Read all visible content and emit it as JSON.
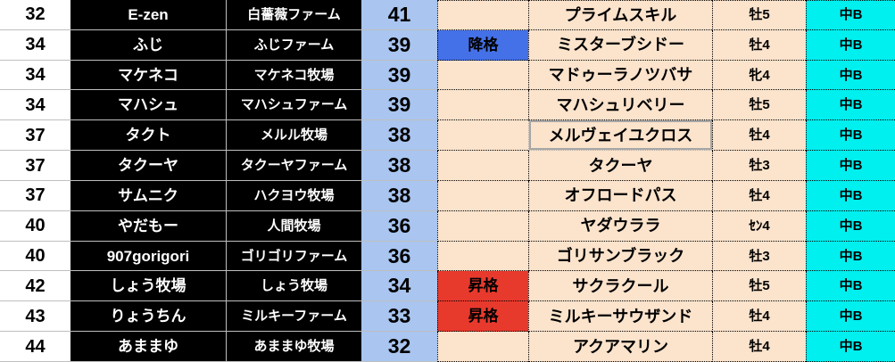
{
  "colors": {
    "c_grid": "#bfbfbf",
    "c_lightblue": "#a9c5f0",
    "c_beige": "#fbe3cc",
    "c_cyan": "#00efef",
    "c_demote": "#4470e8",
    "c_promote": "#e8392d"
  },
  "table": {
    "status_labels": {
      "demote": "降格",
      "promote": "昇格"
    },
    "selected_cell": {
      "row_index": 4,
      "column": "horse_name"
    },
    "rows": [
      {
        "owner_rank": "32",
        "owner_name": "E-zen",
        "farm_name": "白薔薇ファーム",
        "horse_rank": "41",
        "status": "",
        "horse_name": "プライムスキル",
        "sex_age": "牡5",
        "grade": "中B"
      },
      {
        "owner_rank": "34",
        "owner_name": "ふじ",
        "farm_name": "ふじファーム",
        "horse_rank": "39",
        "status": "降格",
        "horse_name": "ミスターブシドー",
        "sex_age": "牡4",
        "grade": "中B"
      },
      {
        "owner_rank": "34",
        "owner_name": "マケネコ",
        "farm_name": "マケネコ牧場",
        "horse_rank": "39",
        "status": "",
        "horse_name": "マドゥーラノツバサ",
        "sex_age": "牝4",
        "grade": "中B"
      },
      {
        "owner_rank": "34",
        "owner_name": "マハシュ",
        "farm_name": "マハシュファーム",
        "horse_rank": "39",
        "status": "",
        "horse_name": "マハシュリベリー",
        "sex_age": "牡5",
        "grade": "中B"
      },
      {
        "owner_rank": "37",
        "owner_name": "タクト",
        "farm_name": "メルル牧場",
        "horse_rank": "38",
        "status": "",
        "horse_name": "メルヴェイユクロス",
        "sex_age": "牡4",
        "grade": "中B"
      },
      {
        "owner_rank": "37",
        "owner_name": "タクーヤ",
        "farm_name": "タクーヤファーム",
        "horse_rank": "38",
        "status": "",
        "horse_name": "タクーヤ",
        "sex_age": "牡3",
        "grade": "中B"
      },
      {
        "owner_rank": "37",
        "owner_name": "サムニク",
        "farm_name": "ハクヨウ牧場",
        "horse_rank": "38",
        "status": "",
        "horse_name": "オフロードパス",
        "sex_age": "牡4",
        "grade": "中B"
      },
      {
        "owner_rank": "40",
        "owner_name": "やだもー",
        "farm_name": "人間牧場",
        "horse_rank": "36",
        "status": "",
        "horse_name": "ヤダウララ",
        "sex_age": "ｾﾝ4",
        "grade": "中B"
      },
      {
        "owner_rank": "40",
        "owner_name": "907gorigori",
        "farm_name": "ゴリゴリファーム",
        "horse_rank": "36",
        "status": "",
        "horse_name": "ゴリサンブラック",
        "sex_age": "牡3",
        "grade": "中B"
      },
      {
        "owner_rank": "42",
        "owner_name": "しょう牧場",
        "farm_name": "しょう牧場",
        "horse_rank": "34",
        "status": "昇格",
        "horse_name": "サクラクール",
        "sex_age": "牡5",
        "grade": "中B"
      },
      {
        "owner_rank": "43",
        "owner_name": "りょうちん",
        "farm_name": "ミルキーファーム",
        "horse_rank": "33",
        "status": "昇格",
        "horse_name": "ミルキーサウザンド",
        "sex_age": "牡4",
        "grade": "中B"
      },
      {
        "owner_rank": "44",
        "owner_name": "あままゆ",
        "farm_name": "あままゆ牧場",
        "horse_rank": "32",
        "status": "",
        "horse_name": "アクアマリン",
        "sex_age": "牡4",
        "grade": "中B"
      }
    ]
  }
}
